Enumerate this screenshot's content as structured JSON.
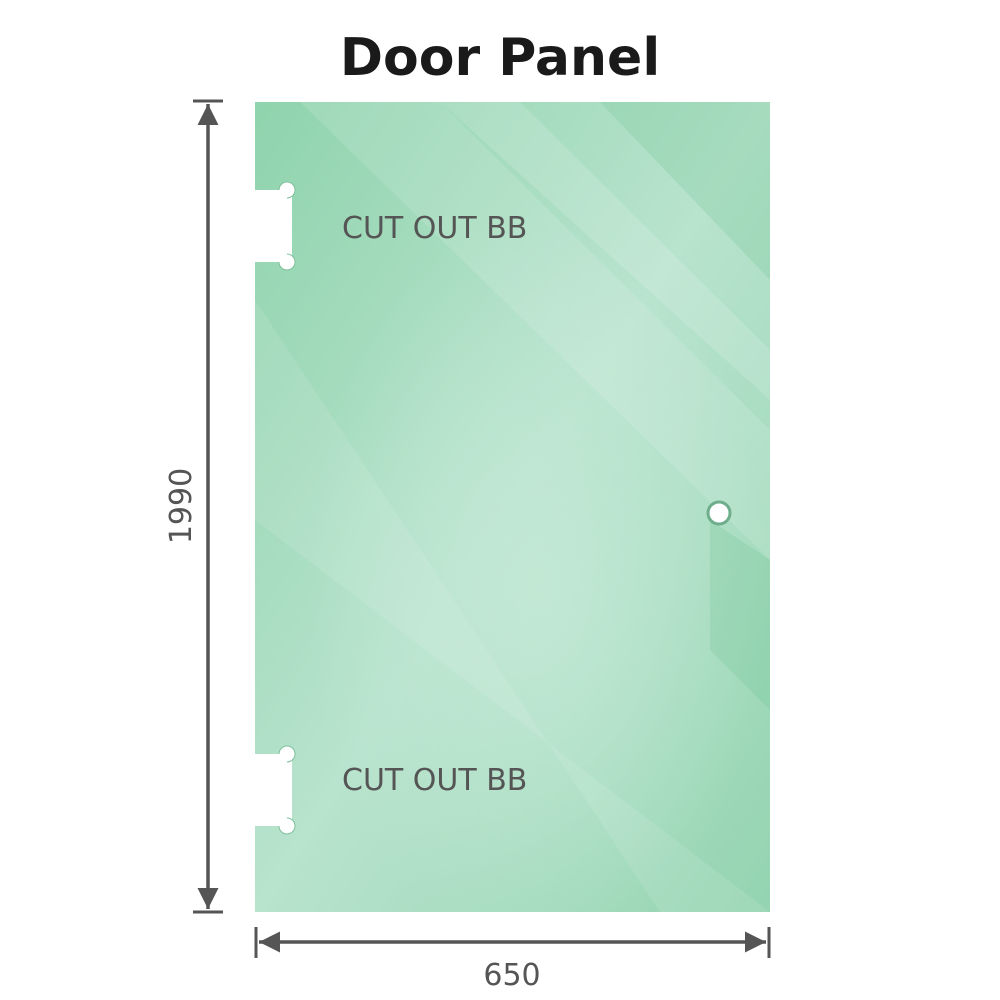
{
  "title": "Door Panel",
  "panel": {
    "color": "#86cfa6",
    "cutout_top_label": "CUT OUT BB",
    "cutout_bottom_label": "CUT OUT BB"
  },
  "dimensions": {
    "height": "1990",
    "width": "650",
    "line_color": "#555555"
  }
}
